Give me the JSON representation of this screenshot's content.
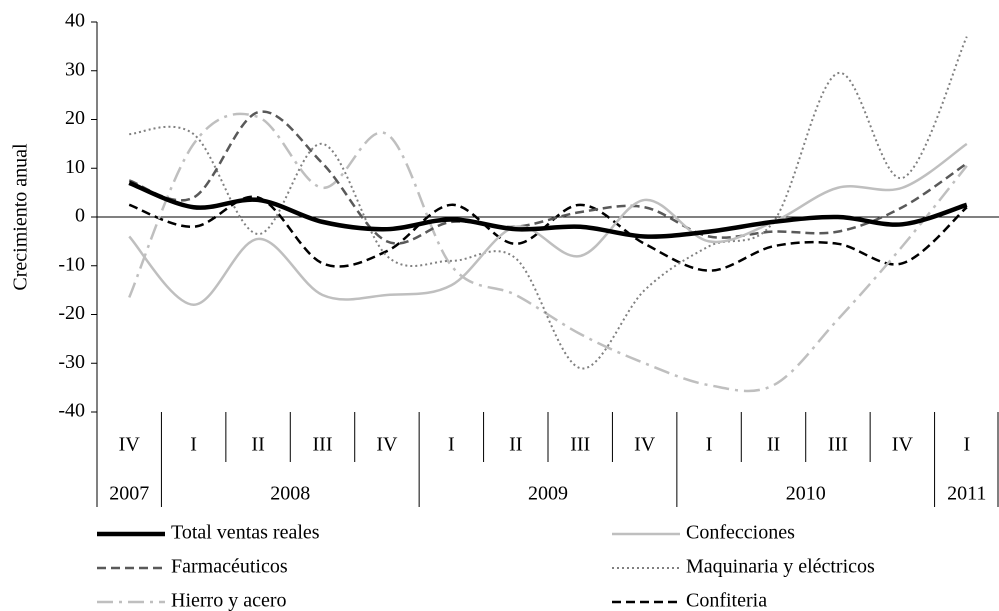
{
  "chart_data": {
    "type": "line",
    "y_label": "Crecimiento  anual",
    "categories": [
      "IV",
      "I",
      "II",
      "III",
      "IV",
      "I",
      "II",
      "III",
      "IV",
      "I",
      "II",
      "III",
      "IV",
      "I"
    ],
    "category_groups": [
      "2007",
      "2008",
      null,
      null,
      null,
      "2009",
      null,
      null,
      null,
      "2010",
      null,
      null,
      null,
      "2011"
    ],
    "ylim": [
      -40,
      40
    ],
    "yticks": [
      -40,
      -30,
      -20,
      -10,
      0,
      10,
      20,
      30,
      40
    ],
    "legend": "bottom",
    "series": [
      {
        "name": "Total ventas reales",
        "color": "#000000",
        "style": "bold",
        "values": [
          7,
          2,
          3.5,
          -1,
          -2.5,
          -0.5,
          -2.5,
          -2,
          -4,
          -3,
          -1,
          0,
          -1.5,
          2.5
        ]
      },
      {
        "name": "Confecciones",
        "color": "#bfbfbf",
        "style": "solid",
        "values": [
          -4,
          -18,
          -4.5,
          -16,
          -16,
          -14,
          -2,
          -8,
          3.5,
          -5,
          -1,
          6,
          6,
          15
        ]
      },
      {
        "name": "Farmacéuticos",
        "color": "#595959",
        "style": "dash",
        "values": [
          7.5,
          4,
          21.5,
          11,
          -5,
          -1,
          -2,
          1,
          2,
          -4,
          -3,
          -3,
          2,
          11
        ]
      },
      {
        "name": "Maquinaria  y eléctricos",
        "color": "#808080",
        "style": "dot",
        "values": [
          17,
          17,
          -3.5,
          15,
          -8,
          -9,
          -8.5,
          -31,
          -15,
          -6,
          -1,
          29.5,
          8,
          37
        ]
      },
      {
        "name": "Hierro y acero",
        "color": "#bfbfbf",
        "style": "dashdot",
        "values": [
          -16.5,
          15,
          20.5,
          6,
          17,
          -10,
          -16,
          -24,
          -30,
          -34.5,
          -34.5,
          -21,
          -6,
          10.5
        ]
      },
      {
        "name": "Confiteria",
        "color": "#000000",
        "style": "dash",
        "values": [
          2.5,
          -2,
          4,
          -9.5,
          -7,
          2.5,
          -5.5,
          2.5,
          -5.5,
          -11,
          -6,
          -5.5,
          -9.5,
          2
        ]
      }
    ]
  }
}
